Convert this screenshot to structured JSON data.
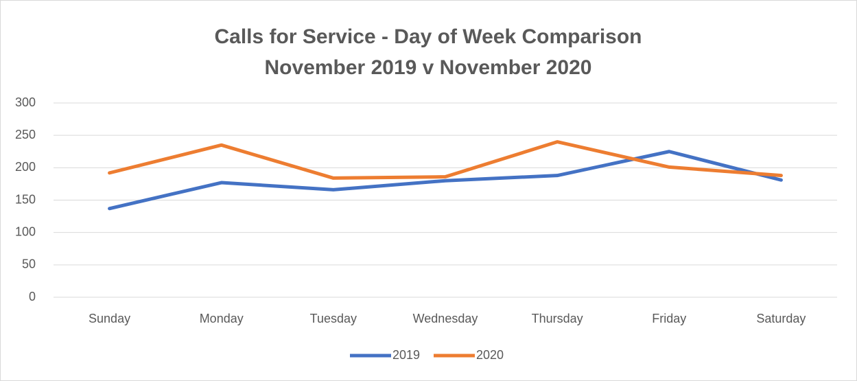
{
  "chart_data": {
    "type": "line",
    "title": "Calls for Service - Day of Week Comparison",
    "subtitle": "November 2019 v November 2020",
    "categories": [
      "Sunday",
      "Monday",
      "Tuesday",
      "Wednesday",
      "Thursday",
      "Friday",
      "Saturday"
    ],
    "series": [
      {
        "name": "2019",
        "color": "#4472c4",
        "values": [
          137,
          177,
          166,
          180,
          188,
          225,
          181
        ]
      },
      {
        "name": "2020",
        "color": "#ed7d31",
        "values": [
          192,
          235,
          184,
          186,
          240,
          201,
          188
        ]
      }
    ],
    "ylim": [
      0,
      300
    ],
    "yticks": [
      0,
      50,
      100,
      150,
      200,
      250,
      300
    ],
    "grid": true,
    "legend": "bottom"
  }
}
